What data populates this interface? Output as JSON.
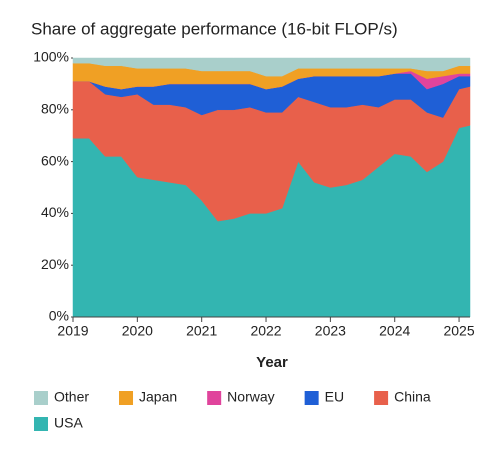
{
  "chart_data": {
    "type": "stacked_area",
    "title": "Share of aggregate performance (16-bit FLOP/s)",
    "x_label": "Year",
    "x": [
      2019,
      2019.25,
      2019.5,
      2019.75,
      2020,
      2020.25,
      2020.5,
      2020.75,
      2021,
      2021.25,
      2021.5,
      2021.75,
      2022,
      2022.25,
      2022.5,
      2022.75,
      2023,
      2023.25,
      2023.5,
      2023.75,
      2024,
      2024.25,
      2024.5,
      2024.75,
      2025,
      2025.17
    ],
    "xlim": [
      2019,
      2025.17
    ],
    "xticks": [
      2019,
      2020,
      2021,
      2022,
      2023,
      2024,
      2025
    ],
    "ylim": [
      0,
      100
    ],
    "yticks": [
      {
        "value": 0,
        "label": "0%"
      },
      {
        "value": 20,
        "label": "20%"
      },
      {
        "value": 40,
        "label": "40%"
      },
      {
        "value": 60,
        "label": "60%"
      },
      {
        "value": 80,
        "label": "80%"
      },
      {
        "value": 100,
        "label": "100%"
      }
    ],
    "series": [
      {
        "name": "Other",
        "color": "#a9cfcb",
        "values": [
          2,
          2,
          3,
          3,
          4,
          4,
          4,
          4,
          5,
          5,
          5,
          5,
          7,
          7,
          4,
          4,
          4,
          4,
          4,
          4,
          4,
          4,
          5,
          5,
          3,
          3
        ]
      },
      {
        "name": "Japan",
        "color": "#f0a024",
        "values": [
          7,
          7,
          8,
          9,
          7,
          7,
          6,
          6,
          5,
          5,
          5,
          5,
          5,
          4,
          4,
          3,
          3,
          3,
          3,
          3,
          2,
          1,
          3,
          2,
          3,
          3
        ]
      },
      {
        "name": "Norway",
        "color": "#e0449c",
        "values": [
          0,
          0,
          0,
          0,
          0,
          0,
          0,
          0,
          0,
          0,
          0,
          0,
          0,
          0,
          0,
          0,
          0,
          0,
          0,
          0,
          0,
          1,
          4,
          3,
          1,
          1
        ]
      },
      {
        "name": "EU",
        "color": "#1f5fd6",
        "values": [
          0,
          0,
          3,
          3,
          3,
          7,
          8,
          9,
          12,
          10,
          10,
          9,
          9,
          10,
          7,
          10,
          12,
          12,
          11,
          12,
          10,
          10,
          9,
          13,
          5,
          4
        ]
      },
      {
        "name": "China",
        "color": "#e8604b",
        "values": [
          22,
          22,
          24,
          23,
          32,
          29,
          30,
          30,
          33,
          43,
          42,
          41,
          39,
          37,
          25,
          31,
          31,
          30,
          29,
          23,
          21,
          22,
          23,
          17,
          15,
          15
        ]
      },
      {
        "name": "USA",
        "color": "#33b5b1",
        "values": [
          69,
          69,
          62,
          62,
          54,
          53,
          52,
          51,
          45,
          37,
          38,
          40,
          40,
          42,
          60,
          52,
          50,
          51,
          53,
          58,
          63,
          62,
          56,
          60,
          73,
          74
        ]
      }
    ]
  }
}
